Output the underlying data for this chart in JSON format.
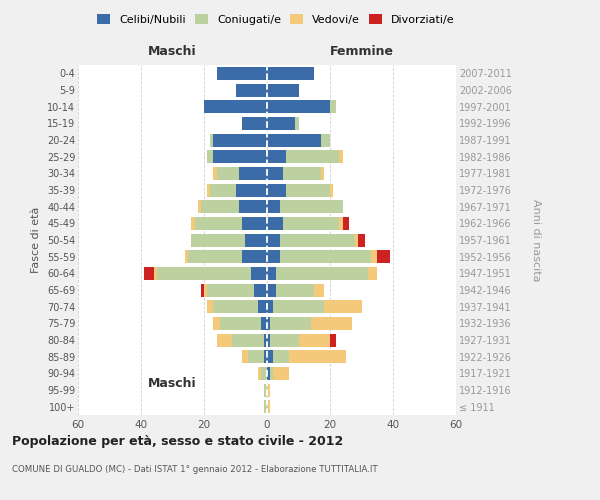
{
  "age_groups": [
    "100+",
    "95-99",
    "90-94",
    "85-89",
    "80-84",
    "75-79",
    "70-74",
    "65-69",
    "60-64",
    "55-59",
    "50-54",
    "45-49",
    "40-44",
    "35-39",
    "30-34",
    "25-29",
    "20-24",
    "15-19",
    "10-14",
    "5-9",
    "0-4"
  ],
  "birth_years": [
    "≤ 1911",
    "1912-1916",
    "1917-1921",
    "1922-1926",
    "1927-1931",
    "1932-1936",
    "1937-1941",
    "1942-1946",
    "1947-1951",
    "1952-1956",
    "1957-1961",
    "1962-1966",
    "1967-1971",
    "1972-1976",
    "1977-1981",
    "1982-1986",
    "1987-1991",
    "1992-1996",
    "1997-2001",
    "2002-2006",
    "2007-2011"
  ],
  "maschi": {
    "celibi": [
      0,
      0,
      0,
      1,
      1,
      2,
      3,
      4,
      5,
      8,
      7,
      8,
      9,
      10,
      9,
      17,
      17,
      8,
      20,
      10,
      16
    ],
    "coniugati": [
      1,
      1,
      2,
      5,
      10,
      13,
      14,
      15,
      30,
      17,
      17,
      15,
      12,
      8,
      7,
      2,
      1,
      0,
      0,
      0,
      0
    ],
    "vedovi": [
      0,
      0,
      1,
      2,
      5,
      2,
      2,
      1,
      1,
      1,
      0,
      1,
      1,
      1,
      1,
      0,
      0,
      0,
      0,
      0,
      0
    ],
    "divorziati": [
      0,
      0,
      0,
      0,
      0,
      0,
      0,
      1,
      3,
      0,
      0,
      0,
      0,
      0,
      0,
      0,
      0,
      0,
      0,
      0,
      0
    ]
  },
  "femmine": {
    "nubili": [
      0,
      0,
      1,
      2,
      1,
      1,
      2,
      3,
      3,
      4,
      4,
      5,
      4,
      6,
      5,
      6,
      17,
      9,
      20,
      10,
      15
    ],
    "coniugate": [
      0,
      0,
      1,
      5,
      9,
      13,
      16,
      12,
      29,
      29,
      24,
      18,
      20,
      14,
      12,
      17,
      3,
      1,
      2,
      0,
      0
    ],
    "vedove": [
      1,
      1,
      5,
      18,
      10,
      13,
      12,
      3,
      3,
      2,
      1,
      1,
      0,
      1,
      1,
      1,
      0,
      0,
      0,
      0,
      0
    ],
    "divorziate": [
      0,
      0,
      0,
      0,
      2,
      0,
      0,
      0,
      0,
      4,
      2,
      2,
      0,
      0,
      0,
      0,
      0,
      0,
      0,
      0,
      0
    ]
  },
  "colors": {
    "celibi_nubili": "#3b6ca8",
    "coniugati": "#bdd1a0",
    "vedovi": "#f5c97a",
    "divorziati": "#cc2222"
  },
  "xlim": 60,
  "title": "Popolazione per età, sesso e stato civile - 2012",
  "subtitle": "COMUNE DI GUALDO (MC) - Dati ISTAT 1° gennaio 2012 - Elaborazione TUTTITALIA.IT",
  "ylabel_left": "Fasce di età",
  "ylabel_right": "Anni di nascita",
  "xlabel_maschi": "Maschi",
  "xlabel_femmine": "Femmine",
  "bg_color": "#f0f0f0",
  "plot_bg": "#ffffff",
  "grid_color": "#cccccc"
}
